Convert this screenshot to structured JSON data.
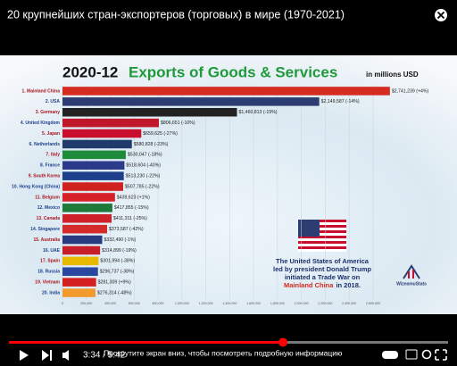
{
  "player": {
    "title": "20 крупнейших стран-экспортеров (торговых) в мире (1970-2021)",
    "time": "3:34 / 5:42",
    "caption": "Прокрутите экран вниз, чтобы посмотреть подробную информацию"
  },
  "chart_data": {
    "type": "bar",
    "orientation": "horizontal",
    "date": "2020-12",
    "title": "Exports of Goods & Services",
    "unit": "in millions USD",
    "categories": [
      "1. Mainland China",
      "2. USA",
      "3. Germany",
      "4. United Kingdom",
      "5. Japan",
      "6. Netherlands",
      "7. Italy",
      "8. France",
      "9. South Korea",
      "10. Hong Kong (China)",
      "11. Belgium",
      "12. Mexico",
      "13. Canada",
      "14. Singapore",
      "15. Australia",
      "16. UAE",
      "17. Spain",
      "18. Russia",
      "19. Vietnam",
      "20. India"
    ],
    "values": [
      2741239,
      2149587,
      1460813,
      806651,
      659625,
      580828,
      530047,
      518604,
      513230,
      507785,
      439623,
      417855,
      411311,
      373587,
      332490,
      314899,
      301994,
      296737,
      281309,
      276314
    ],
    "value_labels": [
      "$2,741,239 (+4%)",
      "$2,149,587 (-14%)",
      "$1,460,813 (-19%)",
      "$806,651 (-10%)",
      "$659,625 (-27%)",
      "$580,828 (-23%)",
      "$530,047 (-18%)",
      "$518,604 (-40%)",
      "$513,230 (-22%)",
      "$507,785 (-22%)",
      "$439,623 (+1%)",
      "$417,855 (-15%)",
      "$411,311 (-25%)",
      "$373,587 (-42%)",
      "$332,490 (-1%)",
      "$314,899 (-19%)",
      "$301,994 (-38%)",
      "$296,737 (-38%)",
      "$281,309 (+9%)",
      "$276,314 (-48%)"
    ],
    "colors": [
      "#d62b1f",
      "#2d3d74",
      "#222222",
      "#c0182a",
      "#c8102e",
      "#203a6b",
      "#1e8b3a",
      "#2c3a8a",
      "#1d3f8c",
      "#d0211f",
      "#d8202a",
      "#1f7a3a",
      "#d0202a",
      "#d42a2a",
      "#273a80",
      "#c81e2a",
      "#e8b800",
      "#2a47a0",
      "#d42020",
      "#f39a2c"
    ],
    "xlim": [
      0,
      2750000
    ],
    "xticks": [
      0,
      {
        "value": 200000,
        "label": "200,000"
      },
      {
        "value": 400000,
        "label": "400,000"
      },
      {
        "value": 600000,
        "label": "600,000"
      },
      {
        "value": 800000,
        "label": "800,000"
      },
      {
        "value": 1000000,
        "label": "1,000,000"
      },
      {
        "value": 1200000,
        "label": "1,200,000"
      },
      {
        "value": 1400000,
        "label": "1,400,000"
      },
      {
        "value": 1600000,
        "label": "1,600,000"
      },
      {
        "value": 1800000,
        "label": "1,800,000"
      },
      {
        "value": 2000000,
        "label": "2,000,000"
      },
      {
        "value": 2200000,
        "label": "2,200,000"
      },
      {
        "value": 2400000,
        "label": "2,400,000"
      },
      {
        "value": 2600000,
        "label": "2,600,000"
      }
    ],
    "grid": true,
    "annotation": [
      "The United States of America",
      "led by president Donald Trump",
      "initiated a Trade War on"
    ],
    "annotation_highlight": "Mainland China",
    "annotation_end": "in 2018.",
    "logo": "WizeamuStats"
  }
}
